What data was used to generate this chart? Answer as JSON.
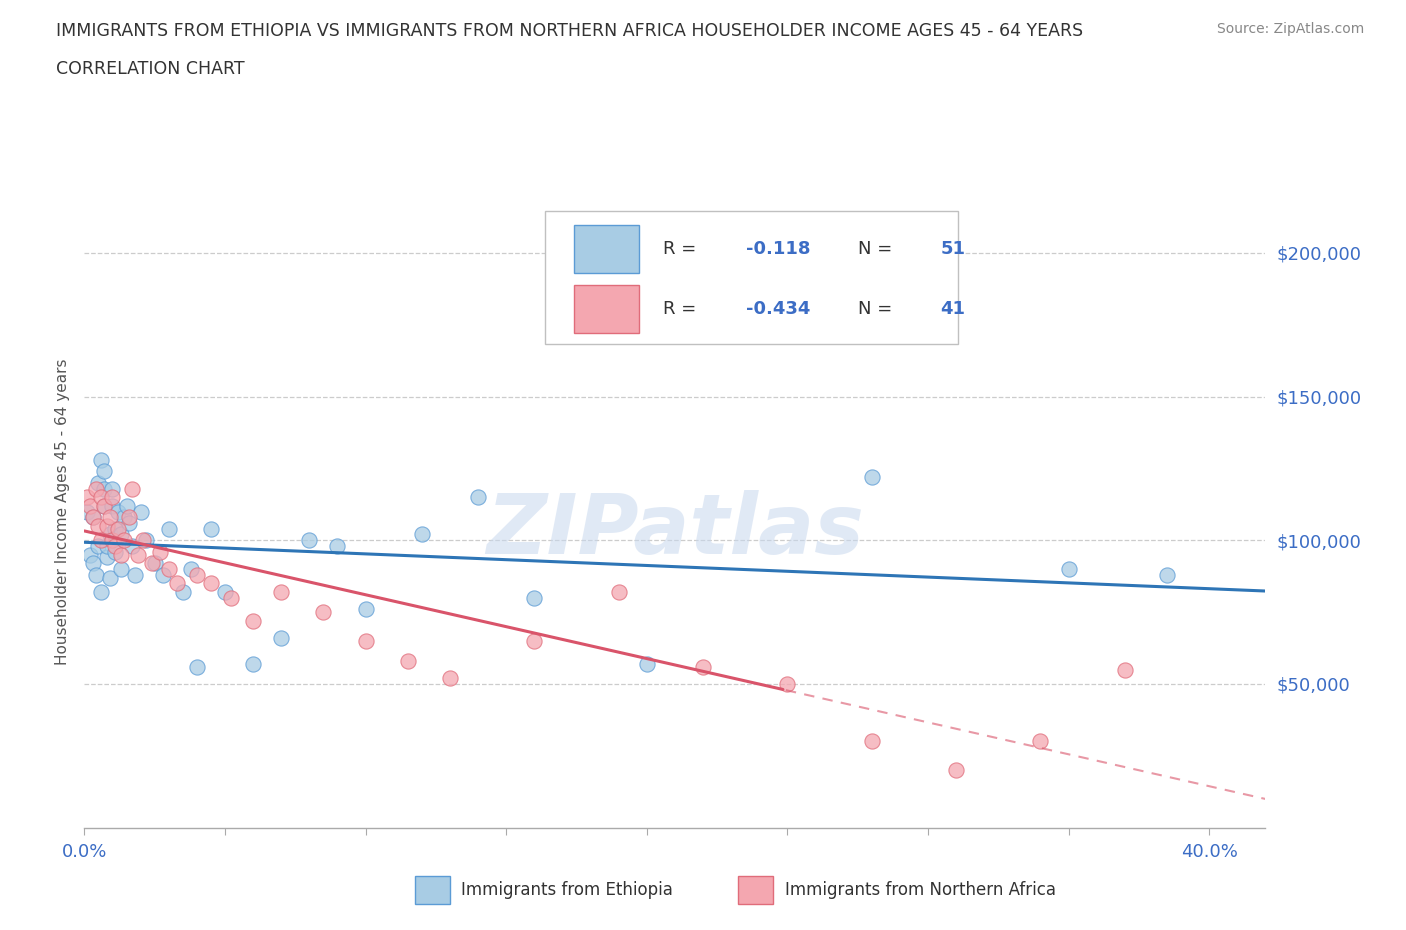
{
  "title_line1": "IMMIGRANTS FROM ETHIOPIA VS IMMIGRANTS FROM NORTHERN AFRICA HOUSEHOLDER INCOME AGES 45 - 64 YEARS",
  "title_line2": "CORRELATION CHART",
  "source_text": "Source: ZipAtlas.com",
  "ylabel": "Householder Income Ages 45 - 64 years",
  "xlim": [
    0.0,
    0.42
  ],
  "ylim": [
    0,
    220000
  ],
  "ytick_vals": [
    50000,
    100000,
    150000,
    200000
  ],
  "ytick_labels": [
    "$50,000",
    "$100,000",
    "$150,000",
    "$200,000"
  ],
  "xtick_vals": [
    0.0,
    0.05,
    0.1,
    0.15,
    0.2,
    0.25,
    0.3,
    0.35,
    0.4
  ],
  "color_ethiopia": "#a8cce4",
  "color_ethiopia_edge": "#5b9bd5",
  "color_ethiopia_line": "#2e75b6",
  "color_n_africa": "#f4a7b0",
  "color_n_africa_edge": "#e06c7a",
  "color_n_africa_line": "#d9546a",
  "watermark": "ZIPatlas",
  "legend_label_1": "Immigrants from Ethiopia",
  "legend_label_2": "Immigrants from Northern Africa",
  "ethiopia_x": [
    0.001,
    0.002,
    0.003,
    0.003,
    0.004,
    0.005,
    0.005,
    0.006,
    0.006,
    0.007,
    0.007,
    0.007,
    0.008,
    0.008,
    0.009,
    0.009,
    0.01,
    0.01,
    0.011,
    0.011,
    0.012,
    0.013,
    0.013,
    0.014,
    0.015,
    0.016,
    0.017,
    0.018,
    0.02,
    0.022,
    0.025,
    0.028,
    0.03,
    0.035,
    0.038,
    0.04,
    0.045,
    0.05,
    0.06,
    0.07,
    0.08,
    0.09,
    0.1,
    0.12,
    0.14,
    0.16,
    0.2,
    0.28,
    0.35,
    0.385
  ],
  "ethiopia_y": [
    110000,
    95000,
    108000,
    92000,
    88000,
    120000,
    98000,
    82000,
    128000,
    124000,
    112000,
    118000,
    94000,
    98000,
    102000,
    87000,
    118000,
    112000,
    104000,
    96000,
    110000,
    102000,
    90000,
    108000,
    112000,
    106000,
    98000,
    88000,
    110000,
    100000,
    92000,
    88000,
    104000,
    82000,
    90000,
    56000,
    104000,
    82000,
    57000,
    66000,
    100000,
    98000,
    76000,
    102000,
    115000,
    80000,
    57000,
    122000,
    90000,
    88000
  ],
  "n_africa_x": [
    0.001,
    0.002,
    0.003,
    0.004,
    0.005,
    0.006,
    0.006,
    0.007,
    0.008,
    0.009,
    0.01,
    0.01,
    0.011,
    0.012,
    0.013,
    0.014,
    0.016,
    0.017,
    0.019,
    0.021,
    0.024,
    0.027,
    0.03,
    0.033,
    0.04,
    0.045,
    0.052,
    0.06,
    0.07,
    0.085,
    0.1,
    0.115,
    0.13,
    0.16,
    0.19,
    0.22,
    0.25,
    0.28,
    0.31,
    0.34,
    0.37
  ],
  "n_africa_y": [
    115000,
    112000,
    108000,
    118000,
    105000,
    100000,
    115000,
    112000,
    105000,
    108000,
    100000,
    115000,
    98000,
    104000,
    95000,
    100000,
    108000,
    118000,
    95000,
    100000,
    92000,
    96000,
    90000,
    85000,
    88000,
    85000,
    80000,
    72000,
    82000,
    75000,
    65000,
    58000,
    52000,
    65000,
    82000,
    56000,
    50000,
    30000,
    20000,
    30000,
    55000
  ]
}
